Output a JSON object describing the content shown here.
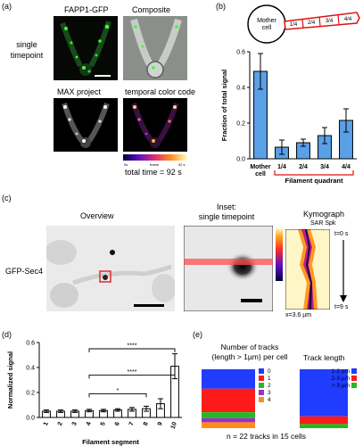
{
  "panels": {
    "a": {
      "letter": "(a)",
      "titles": {
        "fapp": "FAPP1-GFP",
        "composite": "Composite",
        "max": "MAX project",
        "temporal": "temporal color code"
      },
      "row_label": [
        "single",
        "timepoint"
      ],
      "colorbar_labels": {
        "left": "0s",
        "mid": "frame",
        "right": "92 s"
      },
      "total_time": "total time = 92 s"
    },
    "b": {
      "letter": "(b)",
      "mother_label": [
        "Mother",
        "cell"
      ],
      "segments": [
        "1/4",
        "2/4",
        "3/4",
        "4/4"
      ],
      "bracket_label": "Filament quadrant"
    },
    "c": {
      "letter": "(c)",
      "overview_title": "Overview",
      "inset_title": [
        "Inset:",
        "single timepoint"
      ],
      "kymo_title": "Kymograph",
      "kymo_sub": "SAR Spk",
      "row_label": "GFP-Sec4",
      "t0": "t=0 s",
      "t9": "t=9 s",
      "x_label": "x=3.6 µm"
    },
    "d": {
      "letter": "(d)",
      "significance": [
        "****",
        "****",
        "*"
      ]
    },
    "e": {
      "letter": "(e)",
      "title_tracks": [
        "Number of tracks",
        "(length > 1µm) per cell"
      ],
      "title_length": "Track length",
      "legend_left": [
        {
          "label": "0",
          "color": "#1f3cff"
        },
        {
          "label": "1",
          "color": "#ff1a1a"
        },
        {
          "label": "2",
          "color": "#22bb22"
        },
        {
          "label": "3",
          "color": "#9b30c8"
        },
        {
          "label": "4",
          "color": "#ff8c1a"
        }
      ],
      "legend_right": [
        {
          "label": "1-2 µm",
          "color": "#1f3cff"
        },
        {
          "label": "2-3 µm",
          "color": "#ff1a1a"
        },
        {
          "label": "> 3 µm",
          "color": "#22bb22"
        }
      ],
      "bar_left": [
        0.33,
        0.4,
        0.1,
        0.07,
        0.1
      ],
      "bar_right": [
        0.8,
        0.13,
        0.07
      ],
      "footer": "n = 22 tracks in 15 cells"
    }
  },
  "chart_data": [
    {
      "type": "bar",
      "panel": "b",
      "categories": [
        "Mother cell",
        "1/4",
        "2/4",
        "3/4",
        "4/4"
      ],
      "values": [
        0.49,
        0.065,
        0.09,
        0.13,
        0.215
      ],
      "errors": [
        0.1,
        0.04,
        0.02,
        0.045,
        0.065
      ],
      "xlabel": "Filament quadrant",
      "ylabel": "Fraction of total signal",
      "ylim": [
        0,
        0.6
      ],
      "yticks": [
        "0.0",
        "0.2",
        "0.4",
        "0.6"
      ],
      "color": "#5aa0e6"
    },
    {
      "type": "bar",
      "panel": "d",
      "categories": [
        "1",
        "2",
        "3",
        "4",
        "5",
        "6",
        "7",
        "8",
        "9",
        "10"
      ],
      "values": [
        0.05,
        0.05,
        0.05,
        0.055,
        0.055,
        0.06,
        0.065,
        0.07,
        0.11,
        0.41
      ],
      "errors": [
        0.01,
        0.01,
        0.01,
        0.01,
        0.01,
        0.01,
        0.015,
        0.02,
        0.04,
        0.1
      ],
      "xlabel": "Filament segment",
      "ylabel": "Normalized signal",
      "ylim": [
        0,
        0.6
      ],
      "yticks": [
        "0.0",
        "0.2",
        "0.4",
        "0.6"
      ],
      "color": "#ffffff"
    }
  ]
}
